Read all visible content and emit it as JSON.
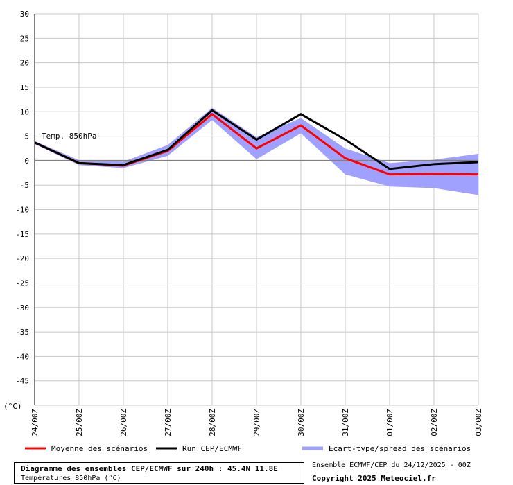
{
  "chart_data": {
    "type": "line",
    "x": [
      "24/00Z",
      "25/00Z",
      "26/00Z",
      "27/00Z",
      "28/00Z",
      "29/00Z",
      "30/00Z",
      "31/00Z",
      "01/00Z",
      "02/00Z",
      "03/00Z"
    ],
    "ylim": [
      -50,
      30
    ],
    "yticks": [
      30,
      25,
      20,
      15,
      10,
      5,
      0,
      -5,
      -10,
      -15,
      -20,
      -25,
      -30,
      -35,
      -40,
      -45
    ],
    "yunit": "(°C)",
    "grid": true,
    "annotation": "Temp. 850hPa",
    "series": [
      {
        "name": "Moyenne des scénarios",
        "color": "#ff0000",
        "values": [
          3.7,
          -0.5,
          -1.0,
          2.0,
          9.5,
          2.5,
          7.2,
          0.5,
          -2.8,
          -2.7,
          -2.8
        ]
      },
      {
        "name": "Run CEP/ECMWF",
        "color": "#000000",
        "values": [
          3.7,
          -0.5,
          -0.9,
          2.2,
          10.3,
          4.3,
          9.5,
          4.3,
          -1.7,
          -0.7,
          -0.3
        ]
      }
    ],
    "band": {
      "name": "Ecart-type/spread des scénarios",
      "color": "#a0a0ff",
      "upper": [
        4.0,
        0.1,
        -0.2,
        3.2,
        10.8,
        4.8,
        8.7,
        2.5,
        -0.5,
        0.2,
        1.4
      ],
      "lower": [
        3.4,
        -0.9,
        -1.5,
        1.0,
        8.3,
        0.3,
        5.6,
        -2.8,
        -5.3,
        -5.6,
        -7.0
      ]
    }
  },
  "title": {
    "main": "Diagramme des ensembles CEP/ECMWF sur 240h : 45.4N 11.8E",
    "sub": "Températures 850hPa (°C)"
  },
  "run_info": "Ensemble ECMWF/CEP du 24/12/2025 - 00Z",
  "copyright": "Copyright 2025 Meteociel.fr"
}
